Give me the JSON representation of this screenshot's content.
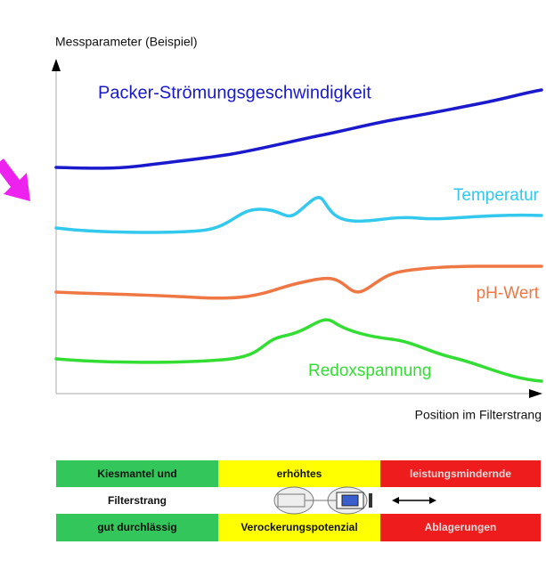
{
  "diagram": {
    "y_axis_label": "Messparameter (Beispiel)",
    "x_axis_label": "Position im Filterstrang",
    "curves": [
      {
        "label": "Packer-Strömungsgeschwindigkeit"
      },
      {
        "label": "Temperatur"
      },
      {
        "label": "pH-Wert"
      },
      {
        "label": "Redoxspannung"
      }
    ]
  },
  "table": {
    "rows": [
      [
        "Kiesmantel und",
        "erhöhtes",
        "leistungsmindernde"
      ],
      [
        "Filterstrang"
      ],
      [
        "gut durchlässig",
        "Verockerungspotenzial",
        "Ablagerungen"
      ]
    ]
  }
}
